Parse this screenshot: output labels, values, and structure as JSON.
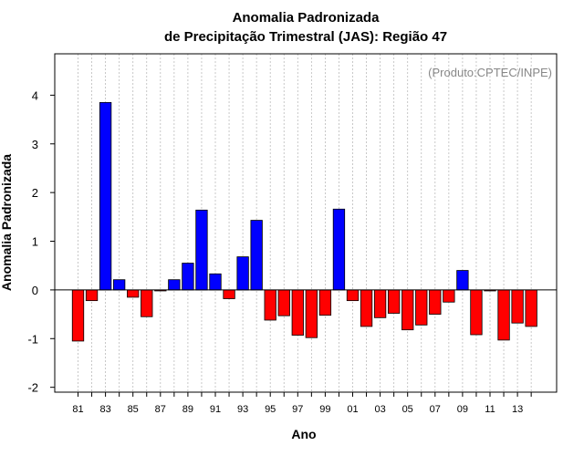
{
  "chart_data": {
    "type": "bar",
    "title_line1": "Anomalia Padronizada",
    "title_line2": "de Precipitação Trimestral (JAS): Região 47",
    "xlabel": "Ano",
    "ylabel": "Anomalia Padronizada",
    "credit": "(Produto:CPTEC/INPE)",
    "ylim": [
      -2.1,
      4.85
    ],
    "yticks": [
      -2,
      -1,
      0,
      1,
      2,
      3,
      4
    ],
    "ytick_labels": [
      "-2",
      "-1",
      "0",
      "1",
      "2",
      "3",
      "4"
    ],
    "grid_x": true,
    "categories": [
      "1981",
      "1982",
      "1983",
      "1984",
      "1985",
      "1986",
      "1987",
      "1988",
      "1989",
      "1990",
      "1991",
      "1992",
      "1993",
      "1994",
      "1995",
      "1996",
      "1997",
      "1998",
      "1999",
      "2000",
      "2001",
      "2002",
      "2003",
      "2004",
      "2005",
      "2006",
      "2007",
      "2008",
      "2009",
      "2010",
      "2011",
      "2012",
      "2013",
      "2014"
    ],
    "xtick_labels": [
      "81",
      "",
      "83",
      "",
      "85",
      "",
      "87",
      "",
      "89",
      "",
      "91",
      "",
      "93",
      "",
      "95",
      "",
      "97",
      "",
      "99",
      "",
      "01",
      "",
      "03",
      "",
      "05",
      "",
      "07",
      "",
      "09",
      "",
      "11",
      "",
      "13",
      ""
    ],
    "values": [
      -1.05,
      -0.22,
      3.85,
      0.21,
      -0.15,
      -0.55,
      -0.02,
      0.21,
      0.55,
      1.64,
      0.33,
      -0.18,
      0.68,
      1.43,
      -0.62,
      -0.53,
      -0.93,
      -0.98,
      -0.52,
      1.66,
      -0.22,
      -0.75,
      -0.57,
      -0.48,
      -0.82,
      -0.72,
      -0.5,
      -0.25,
      0.4,
      -0.92,
      -0.02,
      -1.03,
      -0.68,
      -0.75
    ],
    "colors": {
      "positive": "#0000ff",
      "negative": "#ff0000",
      "bar_stroke": "#000000",
      "grid": "#bbbbbb"
    }
  }
}
